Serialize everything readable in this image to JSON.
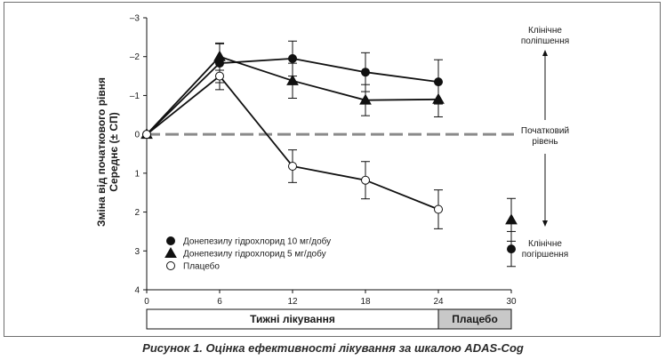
{
  "chart_data": {
    "type": "line",
    "title": "",
    "ylabel_line1": "Зміна від початкового рівня",
    "ylabel_line2": "Середнє (± СП)",
    "xlabel": "",
    "x": [
      0,
      6,
      12,
      18,
      24
    ],
    "xticks": [
      0,
      6,
      12,
      18,
      24,
      30
    ],
    "xlim": [
      0,
      30
    ],
    "ylim": [
      -3,
      4
    ],
    "y_inverted": true,
    "yticks": [
      -3,
      -2,
      -1,
      0,
      1,
      2,
      3,
      4
    ],
    "ytick_labels": [
      "–3",
      "–2",
      "–1",
      "0",
      "1",
      "2",
      "3",
      "4"
    ],
    "series": [
      {
        "name": "Донепезилу гідрохлорид 10 мг/добу",
        "marker": "filled-circle",
        "values": [
          0,
          -1.83,
          -1.95,
          -1.6,
          -1.35
        ],
        "errors": [
          0,
          0.5,
          0.45,
          0.5,
          0.57
        ],
        "endpoint": {
          "x": 30,
          "value": 2.95,
          "error": 0.45
        }
      },
      {
        "name": "Донепезилу гідрохлорид 5 мг/добу",
        "marker": "filled-triangle",
        "values": [
          0,
          -2.0,
          -1.38,
          -0.88,
          -0.9
        ],
        "errors": [
          0,
          0.35,
          0.45,
          0.4,
          0.45
        ],
        "endpoint": {
          "x": 30,
          "value": 2.2,
          "error": 0.55
        }
      },
      {
        "name": "Плацебо",
        "marker": "open-circle",
        "values": [
          0,
          -1.5,
          0.82,
          1.18,
          1.93
        ],
        "errors": [
          0,
          0.35,
          0.42,
          0.48,
          0.5
        ],
        "endpoint": null
      }
    ],
    "baseline_value": 0,
    "annotations": {
      "improvement_line1": "Клінічне",
      "improvement_line2": "поліпшення",
      "baseline_line1": "Початковий",
      "baseline_line2": "рівень",
      "deterioration_line1": "Клінічне",
      "deterioration_line2": "погіршення"
    },
    "phases": {
      "treatment": "Тижні лікування",
      "placebo": "Плацебо"
    },
    "colors": {
      "line": "#111111",
      "baseline": "#8a8a8a",
      "placebo_box": "#c8c8c8",
      "frame": "#6e6e6e"
    }
  },
  "caption": "Рисунок 1. Оцінка ефективності лікування за шкалою ADAS-Cog"
}
